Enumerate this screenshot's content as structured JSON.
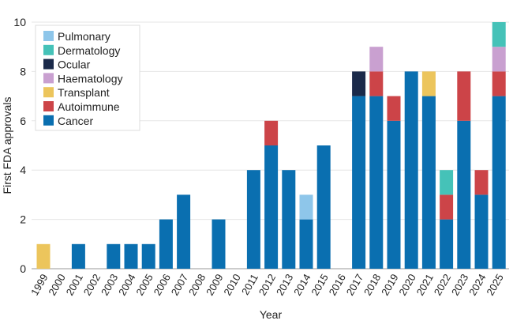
{
  "chart_data": {
    "type": "bar",
    "stacked": true,
    "title": "",
    "xlabel": "Year",
    "ylabel": "First FDA approvals",
    "ylim": [
      0,
      10
    ],
    "yticks": [
      0,
      2,
      4,
      6,
      8,
      10
    ],
    "grid": "horizontal",
    "legend_position": "top-left",
    "categories": [
      "1999",
      "2000",
      "2001",
      "2002",
      "2003",
      "2004",
      "2005",
      "2006",
      "2007",
      "2008",
      "2009",
      "2010",
      "2011",
      "2012",
      "2013",
      "2014",
      "2015",
      "2016",
      "2017",
      "2018",
      "2019",
      "2020",
      "2021",
      "2022",
      "2023",
      "2024",
      "2025"
    ],
    "series": [
      {
        "name": "Cancer",
        "color": "#0a6fb0",
        "values": [
          0,
          0,
          1,
          0,
          1,
          1,
          1,
          2,
          3,
          0,
          2,
          0,
          4,
          5,
          4,
          2,
          5,
          0,
          7,
          7,
          6,
          8,
          7,
          2,
          6,
          3,
          7
        ]
      },
      {
        "name": "Autoimmune",
        "color": "#cc4448",
        "values": [
          0,
          0,
          0,
          0,
          0,
          0,
          0,
          0,
          0,
          0,
          0,
          0,
          0,
          1,
          0,
          0,
          0,
          0,
          0,
          1,
          1,
          0,
          0,
          1,
          2,
          1,
          1
        ]
      },
      {
        "name": "Transplant",
        "color": "#ecc55c",
        "values": [
          1,
          0,
          0,
          0,
          0,
          0,
          0,
          0,
          0,
          0,
          0,
          0,
          0,
          0,
          0,
          0,
          0,
          0,
          0,
          0,
          0,
          0,
          1,
          0,
          0,
          0,
          0
        ]
      },
      {
        "name": "Haematology",
        "color": "#c9a0d0",
        "values": [
          0,
          0,
          0,
          0,
          0,
          0,
          0,
          0,
          0,
          0,
          0,
          0,
          0,
          0,
          0,
          0,
          0,
          0,
          0,
          1,
          0,
          0,
          0,
          0,
          0,
          0,
          1
        ]
      },
      {
        "name": "Ocular",
        "color": "#1b2a4a",
        "values": [
          0,
          0,
          0,
          0,
          0,
          0,
          0,
          0,
          0,
          0,
          0,
          0,
          0,
          0,
          0,
          0,
          0,
          0,
          1,
          0,
          0,
          0,
          0,
          0,
          0,
          0,
          0
        ]
      },
      {
        "name": "Dermatology",
        "color": "#45c2b8",
        "values": [
          0,
          0,
          0,
          0,
          0,
          0,
          0,
          0,
          0,
          0,
          0,
          0,
          0,
          0,
          0,
          0,
          0,
          0,
          0,
          0,
          0,
          0,
          0,
          1,
          0,
          0,
          1
        ]
      },
      {
        "name": "Pulmonary",
        "color": "#8ec6ea",
        "values": [
          0,
          0,
          0,
          0,
          0,
          0,
          0,
          0,
          0,
          0,
          0,
          0,
          0,
          0,
          0,
          1,
          0,
          0,
          0,
          0,
          0,
          0,
          0,
          0,
          0,
          0,
          0
        ]
      }
    ],
    "legend_order": [
      "Pulmonary",
      "Dermatology",
      "Ocular",
      "Haematology",
      "Transplant",
      "Autoimmune",
      "Cancer"
    ]
  }
}
